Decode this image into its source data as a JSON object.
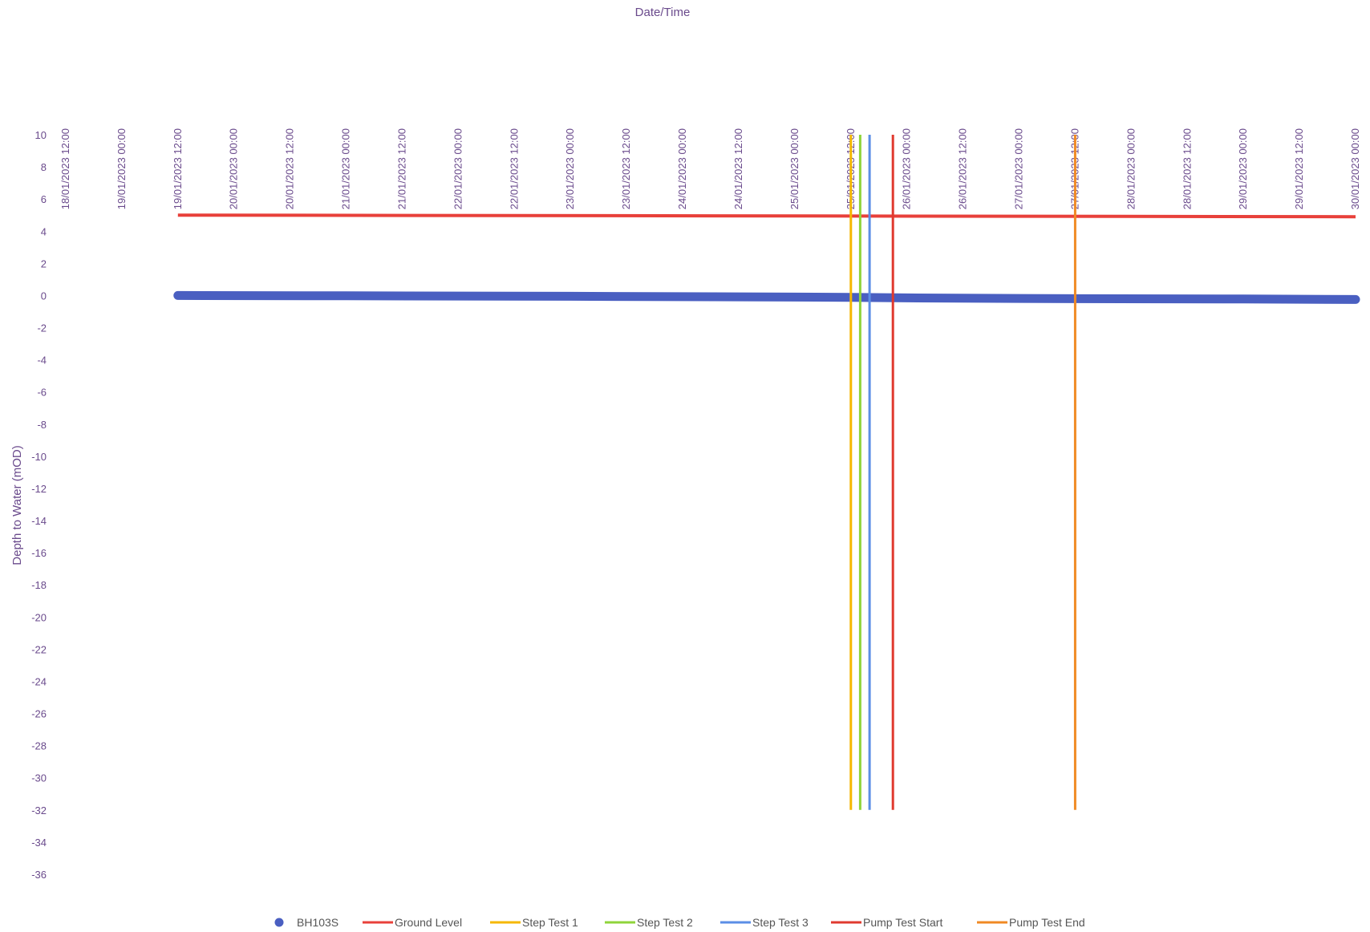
{
  "chart_data": {
    "type": "line",
    "title": "",
    "xlabel": "Date/Time",
    "ylabel": "Depth to Water (mOD)",
    "x_axis_position": "top",
    "xlim": [
      "18/01/2023 12:00",
      "30/01/2023 00:00"
    ],
    "ylim": [
      -36,
      10
    ],
    "y_ticks": [
      10,
      8,
      6,
      4,
      2,
      0,
      -2,
      -4,
      -6,
      -8,
      -10,
      -12,
      -14,
      -16,
      -18,
      -20,
      -22,
      -24,
      -26,
      -28,
      -30,
      -32,
      -34,
      -36
    ],
    "x_ticks": [
      "18/01/2023 12:00",
      "19/01/2023 00:00",
      "19/01/2023 12:00",
      "20/01/2023 00:00",
      "20/01/2023 12:00",
      "21/01/2023 00:00",
      "21/01/2023 12:00",
      "22/01/2023 00:00",
      "22/01/2023 12:00",
      "23/01/2023 00:00",
      "23/01/2023 12:00",
      "24/01/2023 00:00",
      "24/01/2023 12:00",
      "25/01/2023 00:00",
      "25/01/2023 12:00",
      "26/01/2023 00:00",
      "26/01/2023 12:00",
      "27/01/2023 00:00",
      "27/01/2023 12:00",
      "28/01/2023 00:00",
      "28/01/2023 12:00",
      "29/01/2023 00:00",
      "29/01/2023 12:00",
      "30/01/2023 00:00"
    ],
    "grid": false,
    "legend_position": "bottom",
    "series": [
      {
        "name": "BH103S",
        "kind": "scatter",
        "color": "#4a5fc1",
        "points": [
          [
            "19/01/2023 12:00",
            0.0
          ],
          [
            "21/01/2023 00:00",
            -0.02
          ],
          [
            "23/01/2023 00:00",
            -0.05
          ],
          [
            "25/01/2023 00:00",
            -0.1
          ],
          [
            "25/01/2023 12:00",
            -0.12
          ],
          [
            "26/01/2023 00:00",
            -0.15
          ],
          [
            "27/01/2023 12:00",
            -0.2
          ],
          [
            "29/01/2023 00:00",
            -0.22
          ],
          [
            "30/01/2023 00:00",
            -0.25
          ]
        ]
      },
      {
        "name": "Ground Level",
        "kind": "line",
        "color": "#e8403a",
        "points": [
          [
            "19/01/2023 12:00",
            5.0
          ],
          [
            "30/01/2023 00:00",
            4.9
          ]
        ]
      },
      {
        "name": "Step Test 1",
        "kind": "vline",
        "color": "#f5b700",
        "points": [
          [
            "25/01/2023 12:00",
            10
          ],
          [
            "25/01/2023 12:00",
            -32
          ]
        ]
      },
      {
        "name": "Step Test 2",
        "kind": "vline",
        "color": "#8fd43a",
        "points": [
          [
            "25/01/2023 14:00",
            10
          ],
          [
            "25/01/2023 14:00",
            -32
          ]
        ]
      },
      {
        "name": "Step Test 3",
        "kind": "vline",
        "color": "#5b8ee6",
        "points": [
          [
            "25/01/2023 16:00",
            10
          ],
          [
            "25/01/2023 16:00",
            -32
          ]
        ]
      },
      {
        "name": "Pump Test Start",
        "kind": "vline",
        "color": "#e03a2f",
        "points": [
          [
            "25/01/2023 21:00",
            10
          ],
          [
            "25/01/2023 21:00",
            -32
          ]
        ]
      },
      {
        "name": "Pump Test End",
        "kind": "vline",
        "color": "#f08a24",
        "points": [
          [
            "27/01/2023 12:00",
            10
          ],
          [
            "27/01/2023 12:00",
            -32
          ]
        ]
      }
    ]
  }
}
